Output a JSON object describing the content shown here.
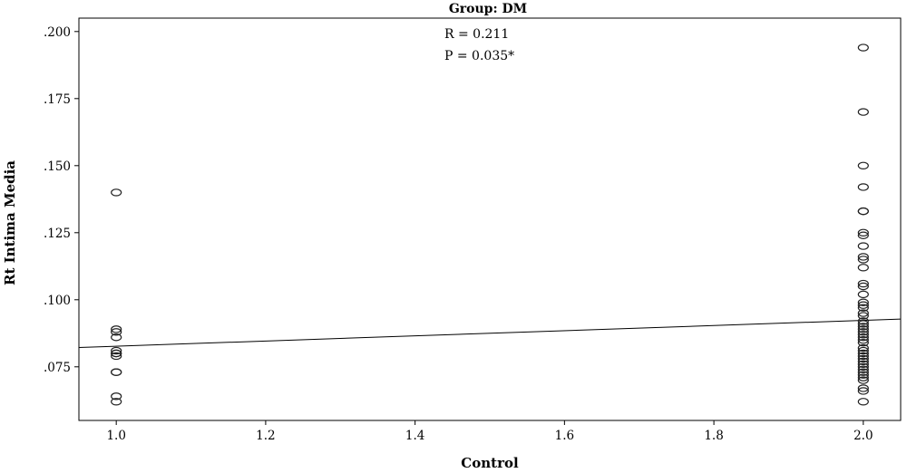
{
  "chart_data": {
    "type": "scatter",
    "title": "Group: DM",
    "xlabel": "Control",
    "ylabel": "Rt Intima Media",
    "xlim": [
      0.95,
      2.05
    ],
    "ylim": [
      0.055,
      0.205
    ],
    "x_ticks": [
      1.0,
      1.2,
      1.4,
      1.6,
      1.8,
      2.0
    ],
    "x_tick_labels": [
      "1.0",
      "1.2",
      "1.4",
      "1.6",
      "1.8",
      "2.0"
    ],
    "y_ticks": [
      0.075,
      0.1,
      0.125,
      0.15,
      0.175,
      0.2
    ],
    "y_tick_labels": [
      ".075",
      ".100",
      ".125",
      ".150",
      ".175",
      ".200"
    ],
    "grid": false,
    "annotations": [
      "R = 0.211",
      "P = 0.035*"
    ],
    "fit_line": {
      "x": [
        0.95,
        2.05
      ],
      "y": [
        0.0822,
        0.0928
      ]
    },
    "series": [
      {
        "x": [
          1,
          1,
          1,
          1,
          1,
          1,
          1,
          1,
          1,
          1,
          1,
          1,
          2,
          2,
          2,
          2,
          2,
          2,
          2,
          2,
          2,
          2,
          2,
          2,
          2,
          2,
          2,
          2,
          2,
          2,
          2,
          2,
          2,
          2,
          2,
          2,
          2,
          2,
          2,
          2,
          2,
          2,
          2,
          2,
          2,
          2,
          2,
          2,
          2,
          2,
          2,
          2,
          2,
          2,
          2,
          2,
          2
        ],
        "y": [
          0.14,
          0.089,
          0.088,
          0.086,
          0.081,
          0.08,
          0.079,
          0.073,
          0.073,
          0.064,
          0.062,
          0.08,
          0.194,
          0.17,
          0.15,
          0.142,
          0.133,
          0.133,
          0.125,
          0.124,
          0.12,
          0.116,
          0.115,
          0.112,
          0.106,
          0.105,
          0.102,
          0.099,
          0.098,
          0.097,
          0.095,
          0.092,
          0.09,
          0.089,
          0.088,
          0.087,
          0.085,
          0.084,
          0.082,
          0.081,
          0.08,
          0.079,
          0.078,
          0.076,
          0.075,
          0.074,
          0.073,
          0.072,
          0.071,
          0.067,
          0.066,
          0.062,
          0.094,
          0.091,
          0.086,
          0.077,
          0.07
        ]
      }
    ]
  }
}
